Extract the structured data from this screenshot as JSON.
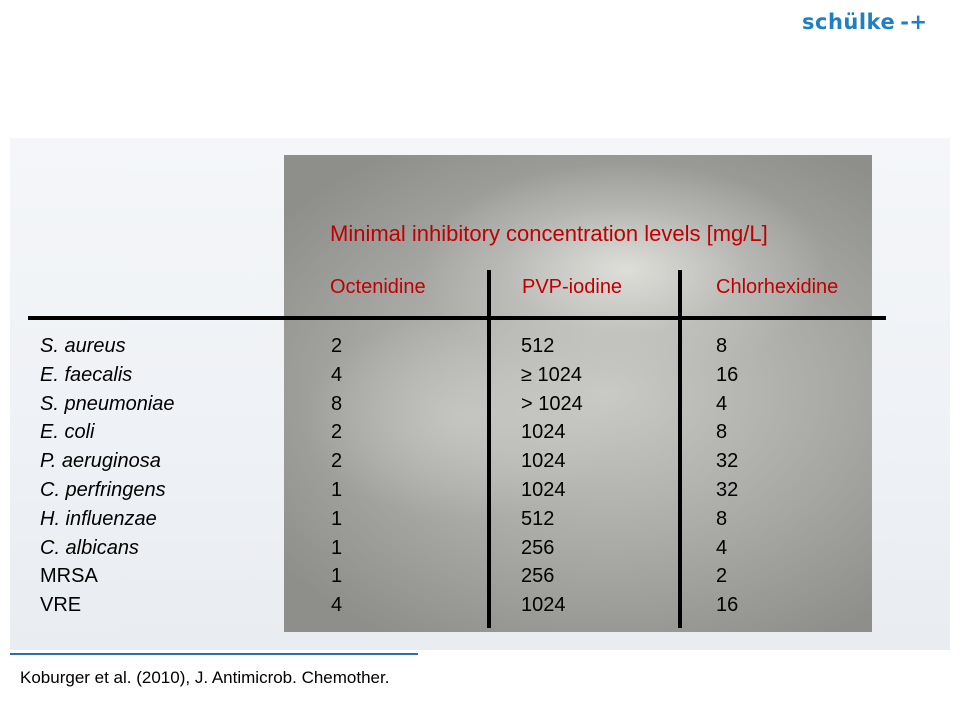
{
  "logo": {
    "text": "schülke",
    "mark": "-+"
  },
  "title": "Minimal inhibitory concentration levels [mg/L]",
  "columns": [
    "Octenidine",
    "PVP-iodine",
    "Chlorhexidine"
  ],
  "rows": [
    {
      "organism": "S. aureus",
      "octenidine": "2",
      "pvp_iodine": "512",
      "chlorhexidine": "8"
    },
    {
      "organism": "E. faecalis",
      "octenidine": "4",
      "pvp_iodine": "≥ 1024",
      "chlorhexidine": "16"
    },
    {
      "organism": "S. pneumoniae",
      "octenidine": "8",
      "pvp_iodine": "> 1024",
      "chlorhexidine": "4"
    },
    {
      "organism": "E. coli",
      "octenidine": "2",
      "pvp_iodine": "1024",
      "chlorhexidine": "8"
    },
    {
      "organism": "P. aeruginosa",
      "octenidine": "2",
      "pvp_iodine": "1024",
      "chlorhexidine": "32"
    },
    {
      "organism": "C. perfringens",
      "octenidine": "1",
      "pvp_iodine": "1024",
      "chlorhexidine": "32"
    },
    {
      "organism": "H. influenzae",
      "octenidine": "1",
      "pvp_iodine": "512",
      "chlorhexidine": "8"
    },
    {
      "organism": "C. albicans",
      "octenidine": "1",
      "pvp_iodine": "256",
      "chlorhexidine": "4"
    },
    {
      "organism": "MRSA",
      "octenidine": "1",
      "pvp_iodine": "256",
      "chlorhexidine": "2"
    },
    {
      "organism": "VRE",
      "octenidine": "4",
      "pvp_iodine": "1024",
      "chlorhexidine": "16"
    }
  ],
  "reference": "Koburger et al. (2010), J. Antimicrob. Chemother.",
  "colors": {
    "accent_red": "#c00000",
    "brand_blue": "#1f7fc4",
    "rule_blue": "#2f6db3"
  }
}
